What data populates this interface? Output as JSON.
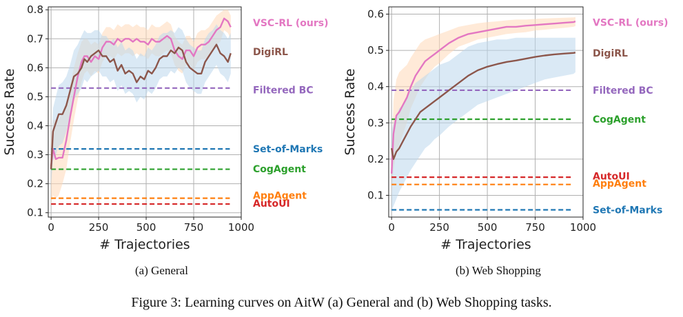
{
  "figure_caption": "Figure 3: Learning curves on AitW (a) General and (b) Web Shopping tasks.",
  "colors": {
    "vsc": "#e377c2",
    "digirl": "#8c564b",
    "filtered_bc": "#9467bd",
    "set_of_marks": "#1f77b4",
    "cogagent": "#2ca02c",
    "appagent": "#ff7f0e",
    "autoui": "#d62728",
    "grid": "#b0b0b0",
    "vsc_band": "#ffd8b8",
    "digirl_band": "#bcd7ec"
  },
  "chart_data": [
    {
      "type": "line",
      "subcaption": "(a)  General",
      "xlabel": "# Trajectories",
      "ylabel": "Success Rate",
      "xlim": [
        -15,
        1000
      ],
      "ylim": [
        0.085,
        0.81
      ],
      "xticks": [
        0,
        250,
        500,
        750,
        1000
      ],
      "xtick_labels": [
        "0",
        "250",
        "500",
        "750",
        "1000"
      ],
      "yticks": [
        0.1,
        0.2,
        0.3,
        0.4,
        0.5,
        0.6,
        0.7,
        0.8
      ],
      "ytick_labels": [
        "0.1",
        "0.2",
        "0.3",
        "0.4",
        "0.5",
        "0.6",
        "0.7",
        "0.8"
      ],
      "grid": true,
      "curves": [
        {
          "name": "VSC-RL (ours)",
          "color_key": "vsc",
          "band_key": "vsc_band",
          "x": [
            0,
            10,
            25,
            40,
            60,
            80,
            100,
            120,
            140,
            160,
            175,
            190,
            210,
            230,
            250,
            270,
            290,
            310,
            330,
            350,
            370,
            390,
            410,
            430,
            450,
            470,
            490,
            510,
            530,
            550,
            570,
            590,
            610,
            630,
            650,
            670,
            690,
            710,
            730,
            750,
            770,
            790,
            810,
            830,
            850,
            870,
            890,
            910,
            930,
            945
          ],
          "y": [
            0.26,
            0.32,
            0.285,
            0.29,
            0.29,
            0.35,
            0.43,
            0.5,
            0.57,
            0.62,
            0.64,
            0.64,
            0.62,
            0.64,
            0.63,
            0.67,
            0.69,
            0.69,
            0.68,
            0.7,
            0.69,
            0.7,
            0.7,
            0.69,
            0.7,
            0.69,
            0.69,
            0.68,
            0.7,
            0.69,
            0.69,
            0.7,
            0.71,
            0.7,
            0.66,
            0.64,
            0.63,
            0.66,
            0.66,
            0.64,
            0.67,
            0.68,
            0.68,
            0.69,
            0.71,
            0.73,
            0.74,
            0.77,
            0.76,
            0.74
          ],
          "lower": [
            0.13,
            0.16,
            0.15,
            0.16,
            0.2,
            0.25,
            0.34,
            0.42,
            0.49,
            0.55,
            0.58,
            0.59,
            0.57,
            0.59,
            0.58,
            0.62,
            0.64,
            0.64,
            0.63,
            0.65,
            0.64,
            0.65,
            0.65,
            0.64,
            0.65,
            0.64,
            0.64,
            0.63,
            0.65,
            0.64,
            0.64,
            0.65,
            0.66,
            0.65,
            0.61,
            0.59,
            0.58,
            0.61,
            0.61,
            0.59,
            0.62,
            0.63,
            0.63,
            0.64,
            0.66,
            0.68,
            0.69,
            0.73,
            0.72,
            0.7
          ],
          "upper": [
            0.34,
            0.42,
            0.42,
            0.42,
            0.45,
            0.48,
            0.54,
            0.6,
            0.65,
            0.69,
            0.7,
            0.7,
            0.68,
            0.69,
            0.68,
            0.72,
            0.74,
            0.74,
            0.73,
            0.75,
            0.74,
            0.75,
            0.75,
            0.74,
            0.75,
            0.74,
            0.74,
            0.73,
            0.75,
            0.74,
            0.74,
            0.75,
            0.76,
            0.75,
            0.71,
            0.69,
            0.68,
            0.71,
            0.71,
            0.69,
            0.72,
            0.73,
            0.73,
            0.74,
            0.76,
            0.78,
            0.79,
            0.8,
            0.8,
            0.78
          ]
        },
        {
          "name": "DigiRL",
          "color_key": "digirl",
          "band_key": "digirl_band",
          "x": [
            0,
            10,
            25,
            40,
            60,
            80,
            100,
            120,
            140,
            160,
            175,
            190,
            210,
            230,
            250,
            270,
            290,
            310,
            330,
            350,
            370,
            390,
            410,
            430,
            450,
            470,
            490,
            510,
            530,
            550,
            570,
            590,
            610,
            630,
            650,
            670,
            690,
            710,
            730,
            750,
            770,
            790,
            810,
            830,
            850,
            870,
            890,
            910,
            930,
            945
          ],
          "y": [
            0.25,
            0.38,
            0.41,
            0.44,
            0.44,
            0.47,
            0.52,
            0.57,
            0.58,
            0.6,
            0.63,
            0.62,
            0.64,
            0.65,
            0.66,
            0.64,
            0.64,
            0.62,
            0.63,
            0.59,
            0.61,
            0.58,
            0.59,
            0.58,
            0.55,
            0.57,
            0.56,
            0.59,
            0.58,
            0.6,
            0.63,
            0.64,
            0.64,
            0.66,
            0.65,
            0.67,
            0.66,
            0.62,
            0.6,
            0.59,
            0.58,
            0.58,
            0.62,
            0.64,
            0.66,
            0.68,
            0.65,
            0.64,
            0.62,
            0.65
          ],
          "lower": [
            0.2,
            0.28,
            0.3,
            0.33,
            0.34,
            0.38,
            0.44,
            0.49,
            0.51,
            0.53,
            0.56,
            0.55,
            0.57,
            0.58,
            0.59,
            0.57,
            0.57,
            0.55,
            0.56,
            0.52,
            0.54,
            0.51,
            0.52,
            0.51,
            0.48,
            0.5,
            0.49,
            0.52,
            0.51,
            0.53,
            0.56,
            0.57,
            0.57,
            0.59,
            0.58,
            0.6,
            0.59,
            0.55,
            0.53,
            0.52,
            0.51,
            0.51,
            0.55,
            0.57,
            0.59,
            0.61,
            0.58,
            0.57,
            0.55,
            0.58
          ],
          "upper": [
            0.3,
            0.46,
            0.5,
            0.54,
            0.55,
            0.57,
            0.61,
            0.66,
            0.68,
            0.71,
            0.73,
            0.72,
            0.72,
            0.73,
            0.73,
            0.71,
            0.71,
            0.69,
            0.7,
            0.67,
            0.69,
            0.66,
            0.67,
            0.66,
            0.63,
            0.65,
            0.64,
            0.67,
            0.66,
            0.68,
            0.71,
            0.72,
            0.72,
            0.73,
            0.72,
            0.74,
            0.73,
            0.7,
            0.68,
            0.67,
            0.66,
            0.66,
            0.7,
            0.72,
            0.73,
            0.75,
            0.73,
            0.72,
            0.7,
            0.72
          ]
        }
      ],
      "baselines": [
        {
          "name": "Filtered BC",
          "value": 0.53,
          "color_key": "filtered_bc"
        },
        {
          "name": "Set-of-Marks",
          "value": 0.32,
          "color_key": "set_of_marks"
        },
        {
          "name": "CogAgent",
          "value": 0.25,
          "color_key": "cogagent"
        },
        {
          "name": "AppAgent",
          "value": 0.15,
          "color_key": "appagent"
        },
        {
          "name": "AutoUI",
          "value": 0.13,
          "color_key": "autoui"
        }
      ],
      "legend": [
        {
          "label": "VSC-RL (ours)",
          "color_key": "vsc",
          "at": 0.755
        },
        {
          "label": "DigiRL",
          "color_key": "digirl",
          "at": 0.655
        },
        {
          "label": "Filtered BC",
          "color_key": "filtered_bc",
          "at": 0.523
        },
        {
          "label": "Set-of-Marks",
          "color_key": "set_of_marks",
          "at": 0.32
        },
        {
          "label": "CogAgent",
          "color_key": "cogagent",
          "at": 0.251
        },
        {
          "label": "AppAgent",
          "color_key": "appagent",
          "at": 0.16
        },
        {
          "label": "AutoUI",
          "color_key": "autoui",
          "at": 0.133
        }
      ]
    },
    {
      "type": "line",
      "subcaption": "(b)  Web Shopping",
      "xlabel": "# Trajectories",
      "ylabel": "Success Rate",
      "xlim": [
        -15,
        1000
      ],
      "ylim": [
        0.04,
        0.62
      ],
      "xticks": [
        0,
        250,
        500,
        750,
        1000
      ],
      "xtick_labels": [
        "0",
        "250",
        "500",
        "750",
        "1000"
      ],
      "yticks": [
        0.1,
        0.2,
        0.3,
        0.4,
        0.5,
        0.6
      ],
      "ytick_labels": [
        "0.1",
        "0.2",
        "0.3",
        "0.4",
        "0.5",
        "0.6"
      ],
      "grid": true,
      "curves": [
        {
          "name": "VSC-RL (ours)",
          "color_key": "vsc",
          "band_key": "vsc_band",
          "x": [
            0,
            10,
            25,
            40,
            60,
            80,
            100,
            125,
            150,
            175,
            200,
            225,
            250,
            300,
            350,
            400,
            450,
            500,
            550,
            600,
            650,
            700,
            750,
            800,
            850,
            900,
            950,
            960
          ],
          "y": [
            0.16,
            0.27,
            0.32,
            0.33,
            0.35,
            0.37,
            0.4,
            0.43,
            0.45,
            0.47,
            0.48,
            0.49,
            0.5,
            0.52,
            0.535,
            0.545,
            0.55,
            0.555,
            0.56,
            0.565,
            0.565,
            0.568,
            0.57,
            0.572,
            0.574,
            0.576,
            0.578,
            0.58
          ],
          "lower": [
            0.1,
            0.17,
            0.22,
            0.24,
            0.27,
            0.3,
            0.34,
            0.37,
            0.4,
            0.42,
            0.44,
            0.455,
            0.465,
            0.49,
            0.51,
            0.52,
            0.53,
            0.535,
            0.54,
            0.545,
            0.548,
            0.55,
            0.555,
            0.557,
            0.56,
            0.562,
            0.565,
            0.567
          ],
          "upper": [
            0.2,
            0.36,
            0.42,
            0.44,
            0.45,
            0.46,
            0.48,
            0.5,
            0.52,
            0.53,
            0.535,
            0.54,
            0.545,
            0.555,
            0.565,
            0.57,
            0.575,
            0.578,
            0.58,
            0.583,
            0.585,
            0.585,
            0.587,
            0.588,
            0.589,
            0.59,
            0.591,
            0.592
          ]
        },
        {
          "name": "DigiRL",
          "color_key": "digirl",
          "band_key": "digirl_band",
          "x": [
            0,
            10,
            25,
            40,
            60,
            80,
            100,
            125,
            150,
            175,
            200,
            225,
            250,
            300,
            350,
            400,
            450,
            500,
            550,
            600,
            650,
            700,
            750,
            800,
            850,
            900,
            950,
            960
          ],
          "y": [
            0.23,
            0.2,
            0.22,
            0.23,
            0.25,
            0.27,
            0.29,
            0.31,
            0.33,
            0.34,
            0.35,
            0.36,
            0.37,
            0.39,
            0.41,
            0.43,
            0.445,
            0.455,
            0.462,
            0.468,
            0.472,
            0.477,
            0.482,
            0.486,
            0.489,
            0.491,
            0.493,
            0.494
          ],
          "lower": [
            0.06,
            0.07,
            0.09,
            0.11,
            0.13,
            0.15,
            0.17,
            0.19,
            0.21,
            0.23,
            0.24,
            0.255,
            0.265,
            0.29,
            0.31,
            0.33,
            0.35,
            0.36,
            0.37,
            0.38,
            0.39,
            0.4,
            0.41,
            0.42,
            0.425,
            0.43,
            0.435,
            0.44
          ],
          "upper": [
            0.28,
            0.3,
            0.32,
            0.34,
            0.35,
            0.37,
            0.39,
            0.41,
            0.42,
            0.43,
            0.44,
            0.45,
            0.46,
            0.47,
            0.49,
            0.51,
            0.52,
            0.525,
            0.53,
            0.53,
            0.535,
            0.535,
            0.535,
            0.535,
            0.535,
            0.535,
            0.535,
            0.535
          ]
        }
      ],
      "baselines": [
        {
          "name": "Filtered BC",
          "value": 0.39,
          "color_key": "filtered_bc"
        },
        {
          "name": "CogAgent",
          "value": 0.31,
          "color_key": "cogagent"
        },
        {
          "name": "AutoUI",
          "value": 0.15,
          "color_key": "autoui"
        },
        {
          "name": "AppAgent",
          "value": 0.13,
          "color_key": "appagent"
        },
        {
          "name": "Set-of-Marks",
          "value": 0.06,
          "color_key": "set_of_marks"
        }
      ],
      "legend": [
        {
          "label": "VSC-RL (ours)",
          "color_key": "vsc",
          "at": 0.577
        },
        {
          "label": "DigiRL",
          "color_key": "digirl",
          "at": 0.493
        },
        {
          "label": "Filtered BC",
          "color_key": "filtered_bc",
          "at": 0.39
        },
        {
          "label": "CogAgent",
          "color_key": "cogagent",
          "at": 0.31
        },
        {
          "label": "AutoUI",
          "color_key": "autoui",
          "at": 0.153
        },
        {
          "label": "AppAgent",
          "color_key": "appagent",
          "at": 0.133
        },
        {
          "label": "Set-of-Marks",
          "color_key": "set_of_marks",
          "at": 0.06
        }
      ]
    }
  ]
}
